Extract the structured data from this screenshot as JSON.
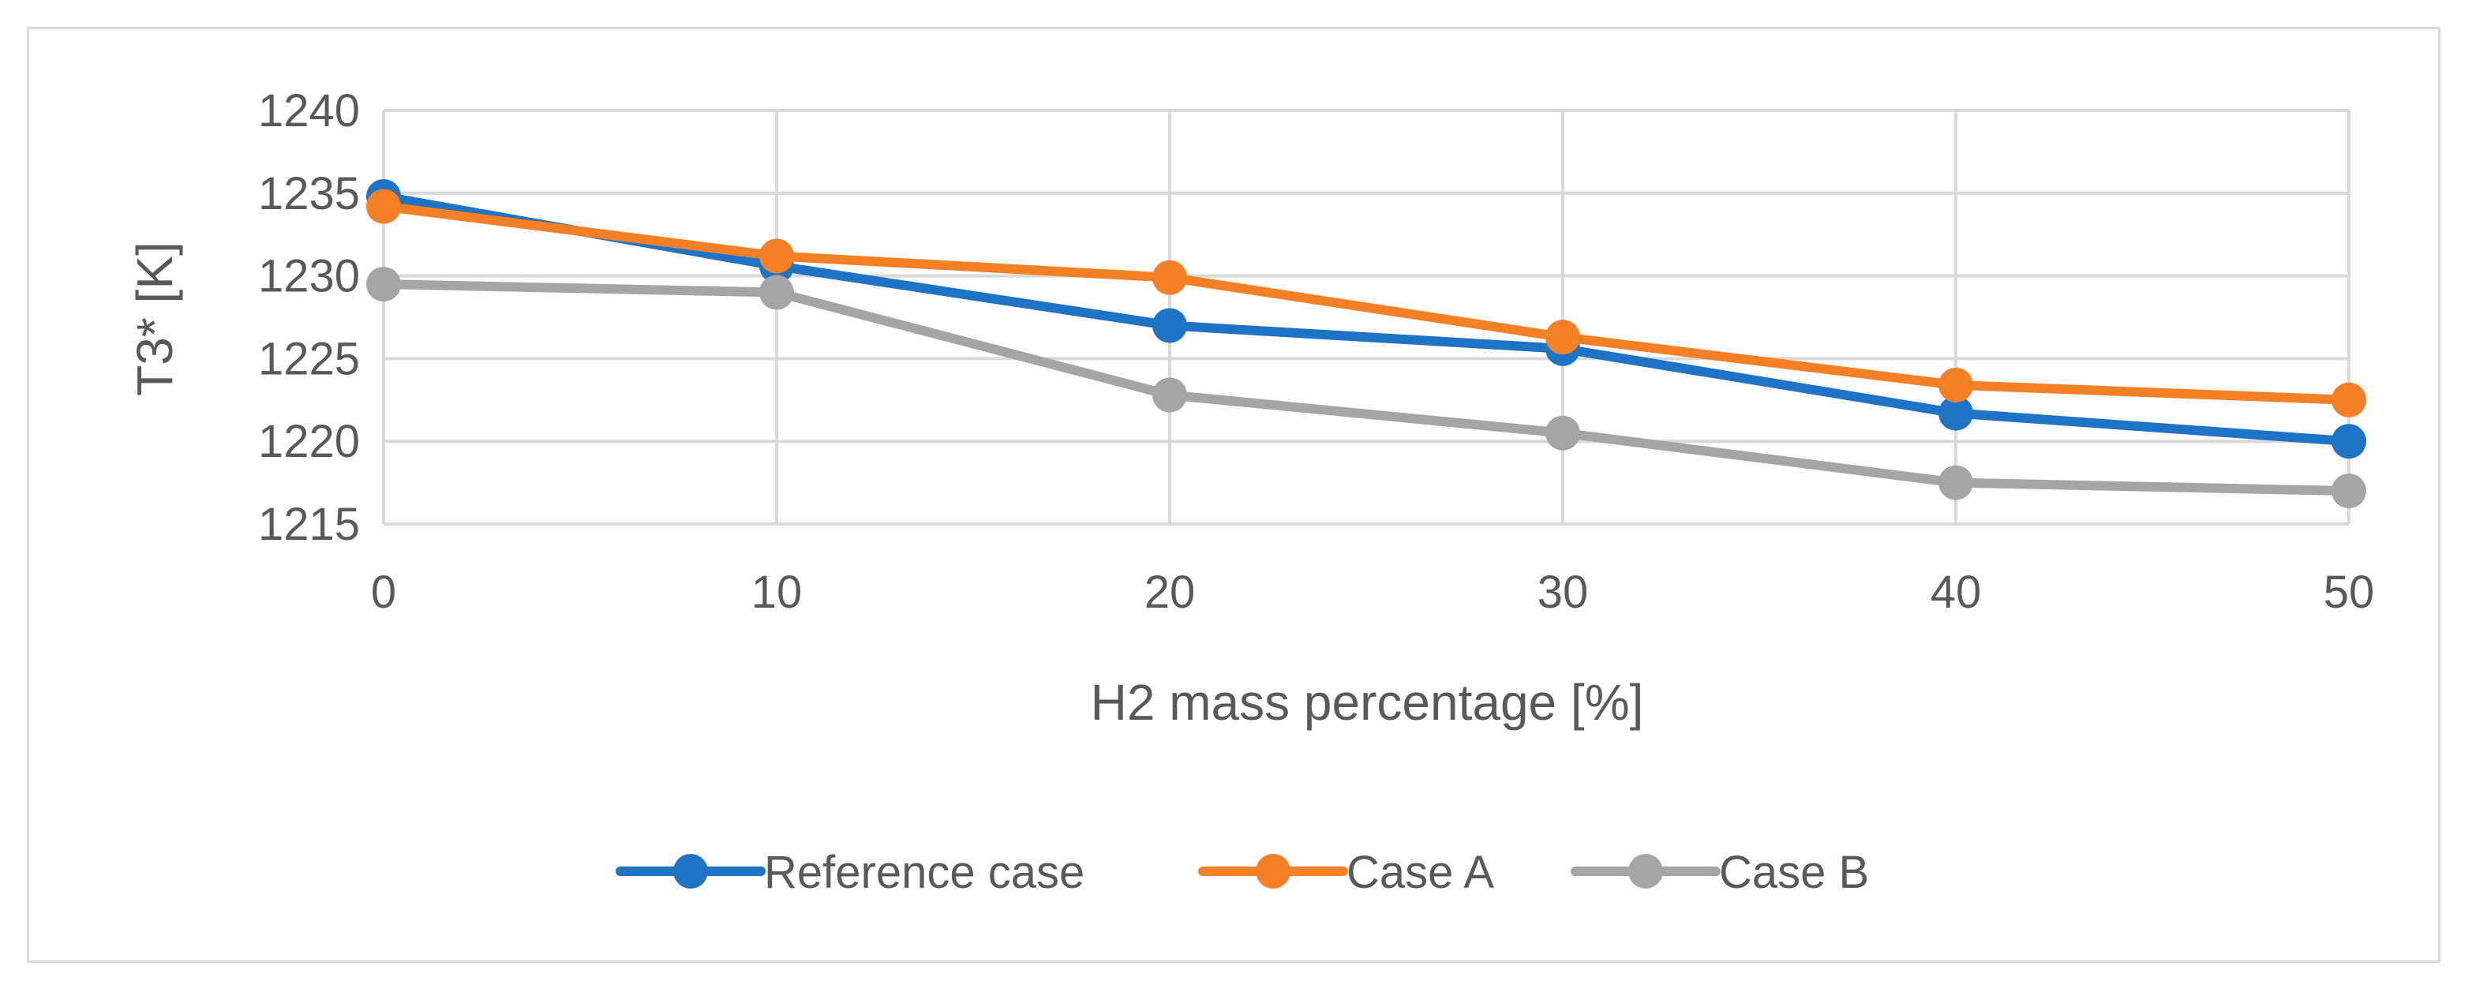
{
  "chart_data": {
    "type": "line",
    "title": "",
    "xlabel": "H2 mass percentage [%]",
    "ylabel": "T3* [K]",
    "x": [
      0,
      10,
      20,
      30,
      40,
      50
    ],
    "xlim": [
      0,
      50
    ],
    "ylim": [
      1215,
      1240
    ],
    "yticks": [
      1215,
      1220,
      1225,
      1230,
      1235,
      1240
    ],
    "grid": true,
    "legend_position": "bottom",
    "series": [
      {
        "name": "Reference case",
        "color": "#1f73c5",
        "values": [
          1234.8,
          1230.6,
          1227.0,
          1225.6,
          1221.7,
          1220.0
        ]
      },
      {
        "name": "Case A",
        "color": "#f58025",
        "values": [
          1234.2,
          1231.2,
          1229.9,
          1226.3,
          1223.4,
          1222.5
        ]
      },
      {
        "name": "Case B",
        "color": "#a5a5a5",
        "values": [
          1229.5,
          1229.0,
          1222.8,
          1220.5,
          1217.5,
          1217.0
        ]
      }
    ]
  }
}
